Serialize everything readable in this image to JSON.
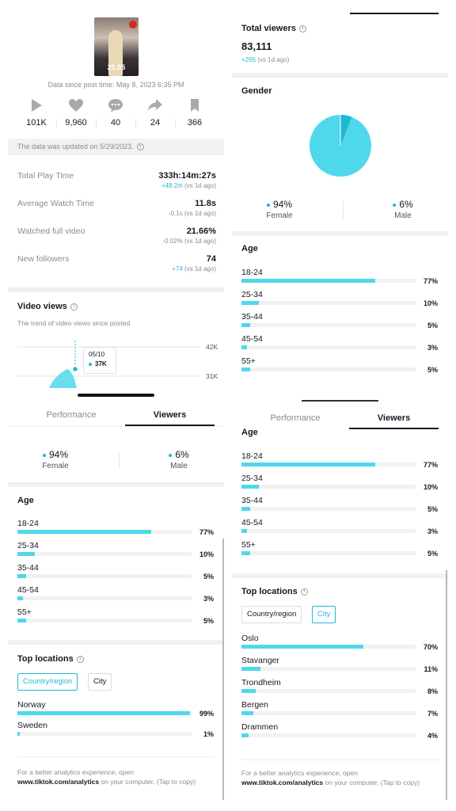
{
  "left_top": {
    "thumb_caption": "21.85",
    "data_since": "Data since post time: May 8, 2023 6:35 PM",
    "stats": [
      {
        "icon": "play-icon",
        "value": "101K"
      },
      {
        "icon": "heart-icon",
        "value": "9,960"
      },
      {
        "icon": "comment-icon",
        "value": "40"
      },
      {
        "icon": "share-icon",
        "value": "24"
      },
      {
        "icon": "bookmark-icon",
        "value": "366"
      }
    ],
    "updated": "The data was updated on 5/29/2023.",
    "metrics": [
      {
        "label": "Total Play Time",
        "value": "333h:14m:27s",
        "delta": "+48.2m",
        "delta_note": "(vs 1d ago)"
      },
      {
        "label": "Average Watch Time",
        "value": "11.8s",
        "delta": "-0.1s",
        "delta_note": "(vs 1d ago)"
      },
      {
        "label": "Watched full video",
        "value": "21.66%",
        "delta": "-0.02%",
        "delta_note": "(vs 1d ago)"
      },
      {
        "label": "New followers",
        "value": "74",
        "delta": "+74",
        "delta_note": "(vs 1d ago)"
      }
    ],
    "video_views": {
      "title": "Video views",
      "subtitle": "The trend of video views since posted",
      "tooltip_date": "05/10",
      "tooltip_value": "37K",
      "y_ticks": [
        "42K",
        "31K"
      ]
    }
  },
  "tabs": {
    "performance": "Performance",
    "viewers": "Viewers"
  },
  "left_bottom": {
    "gender": {
      "female_pct": "94%",
      "female": "Female",
      "male_pct": "6%",
      "male": "Male"
    },
    "age_title": "Age",
    "age": [
      {
        "label": "18-24",
        "pct": "77%",
        "value": 77
      },
      {
        "label": "25-34",
        "pct": "10%",
        "value": 10
      },
      {
        "label": "35-44",
        "pct": "5%",
        "value": 5
      },
      {
        "label": "45-54",
        "pct": "3%",
        "value": 3
      },
      {
        "label": "55+",
        "pct": "5%",
        "value": 5
      }
    ],
    "locations_title": "Top locations",
    "toggle": {
      "country": "Country/region",
      "city": "City"
    },
    "locations": [
      {
        "label": "Norway",
        "pct": "99%",
        "value": 99
      },
      {
        "label": "Sweden",
        "pct": "1%",
        "value": 1
      }
    ],
    "footer_1": "For a better analytics experience, open",
    "footer_link": "www.tiktok.com/analytics",
    "footer_2": " on your computer. (Tap to copy)"
  },
  "right_top": {
    "total_viewers_label": "Total viewers",
    "total_viewers": "83,111",
    "delta": "+265",
    "delta_note": "(vs 1d ago)",
    "gender_title": "Gender",
    "gender": {
      "female_pct": "94%",
      "female": "Female",
      "male_pct": "6%",
      "male": "Male",
      "female_value": 94,
      "male_value": 6
    },
    "age_title": "Age",
    "age": [
      {
        "label": "18-24",
        "pct": "77%",
        "value": 77
      },
      {
        "label": "25-34",
        "pct": "10%",
        "value": 10
      },
      {
        "label": "35-44",
        "pct": "5%",
        "value": 5
      },
      {
        "label": "45-54",
        "pct": "3%",
        "value": 3
      },
      {
        "label": "55+",
        "pct": "5%",
        "value": 5
      }
    ]
  },
  "right_bottom": {
    "age_title": "Age",
    "age": [
      {
        "label": "18-24",
        "pct": "77%",
        "value": 77
      },
      {
        "label": "25-34",
        "pct": "10%",
        "value": 10
      },
      {
        "label": "35-44",
        "pct": "5%",
        "value": 5
      },
      {
        "label": "45-54",
        "pct": "3%",
        "value": 3
      },
      {
        "label": "55+",
        "pct": "5%",
        "value": 5
      }
    ],
    "locations_title": "Top locations",
    "toggle": {
      "country": "Country/region",
      "city": "City"
    },
    "locations": [
      {
        "label": "Oslo",
        "pct": "70%",
        "value": 70
      },
      {
        "label": "Stavanger",
        "pct": "11%",
        "value": 11
      },
      {
        "label": "Trondheim",
        "pct": "8%",
        "value": 8
      },
      {
        "label": "Bergen",
        "pct": "7%",
        "value": 7
      },
      {
        "label": "Drammen",
        "pct": "4%",
        "value": 4
      }
    ],
    "footer_1": "For a better analytics experience, open",
    "footer_link": "www.tiktok.com/analytics",
    "footer_2": " on your computer. (Tap to copy)"
  },
  "colors": {
    "accent": "#20b9d6",
    "bar": "#4fd8eb",
    "pie": "#4fd8eb"
  }
}
